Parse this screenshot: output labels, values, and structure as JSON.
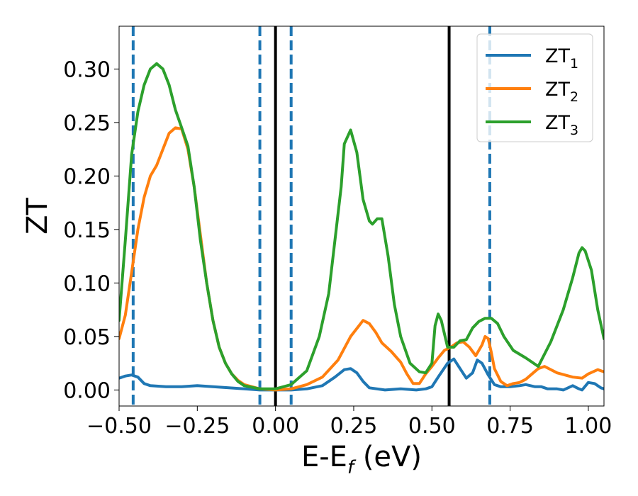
{
  "chart_data": {
    "type": "line",
    "title": "",
    "xlabel": "E-E",
    "xlabel_sub": "f",
    "xlabel_unit": " (eV)",
    "ylabel": "ZT",
    "xlim": [
      -0.5,
      1.05
    ],
    "ylim": [
      -0.015,
      0.34
    ],
    "xticks": [
      -0.5,
      -0.25,
      0.0,
      0.25,
      0.5,
      0.75,
      1.0
    ],
    "xtick_labels": [
      "−0.50",
      "−0.25",
      "0.00",
      "0.25",
      "0.50",
      "0.75",
      "1.00"
    ],
    "yticks": [
      0.0,
      0.05,
      0.1,
      0.15,
      0.2,
      0.25,
      0.3
    ],
    "ytick_labels": [
      "0.00",
      "0.05",
      "0.10",
      "0.15",
      "0.20",
      "0.25",
      "0.30"
    ],
    "grid": false,
    "legend_position": "top-right",
    "vlines_solid": [
      0.0,
      0.555
    ],
    "vlines_dashed": [
      -0.455,
      -0.05,
      0.05,
      0.685
    ],
    "vline_solid_color": "#000000",
    "vline_dashed_color": "#1f77b4",
    "series": [
      {
        "name": "ZT",
        "sub": "1",
        "color": "#1f77b4",
        "points": [
          [
            -0.5,
            0.011
          ],
          [
            -0.48,
            0.013
          ],
          [
            -0.46,
            0.014
          ],
          [
            -0.44,
            0.012
          ],
          [
            -0.42,
            0.006
          ],
          [
            -0.4,
            0.004
          ],
          [
            -0.35,
            0.003
          ],
          [
            -0.3,
            0.003
          ],
          [
            -0.25,
            0.004
          ],
          [
            -0.2,
            0.003
          ],
          [
            -0.15,
            0.002
          ],
          [
            -0.1,
            0.001
          ],
          [
            -0.05,
            0.0
          ],
          [
            0.0,
            0.0
          ],
          [
            0.05,
            0.0
          ],
          [
            0.1,
            0.001
          ],
          [
            0.15,
            0.004
          ],
          [
            0.19,
            0.012
          ],
          [
            0.22,
            0.019
          ],
          [
            0.24,
            0.02
          ],
          [
            0.26,
            0.016
          ],
          [
            0.28,
            0.008
          ],
          [
            0.3,
            0.002
          ],
          [
            0.35,
            0.0
          ],
          [
            0.4,
            0.001
          ],
          [
            0.45,
            0.0
          ],
          [
            0.48,
            0.001
          ],
          [
            0.5,
            0.003
          ],
          [
            0.52,
            0.012
          ],
          [
            0.55,
            0.025
          ],
          [
            0.57,
            0.029
          ],
          [
            0.59,
            0.02
          ],
          [
            0.61,
            0.011
          ],
          [
            0.63,
            0.016
          ],
          [
            0.645,
            0.028
          ],
          [
            0.66,
            0.025
          ],
          [
            0.68,
            0.014
          ],
          [
            0.7,
            0.005
          ],
          [
            0.72,
            0.003
          ],
          [
            0.75,
            0.003
          ],
          [
            0.78,
            0.004
          ],
          [
            0.8,
            0.005
          ],
          [
            0.83,
            0.003
          ],
          [
            0.85,
            0.003
          ],
          [
            0.87,
            0.001
          ],
          [
            0.9,
            0.001
          ],
          [
            0.92,
            0.0
          ],
          [
            0.95,
            0.004
          ],
          [
            0.97,
            0.001
          ],
          [
            0.98,
            0.0
          ],
          [
            1.0,
            0.007
          ],
          [
            1.02,
            0.006
          ],
          [
            1.04,
            0.002
          ],
          [
            1.05,
            0.001
          ]
        ]
      },
      {
        "name": "ZT",
        "sub": "2",
        "color": "#ff7f0e",
        "points": [
          [
            -0.5,
            0.048
          ],
          [
            -0.48,
            0.07
          ],
          [
            -0.46,
            0.11
          ],
          [
            -0.44,
            0.15
          ],
          [
            -0.42,
            0.18
          ],
          [
            -0.4,
            0.2
          ],
          [
            -0.38,
            0.21
          ],
          [
            -0.36,
            0.225
          ],
          [
            -0.34,
            0.24
          ],
          [
            -0.32,
            0.245
          ],
          [
            -0.3,
            0.244
          ],
          [
            -0.28,
            0.225
          ],
          [
            -0.26,
            0.19
          ],
          [
            -0.24,
            0.145
          ],
          [
            -0.22,
            0.1
          ],
          [
            -0.2,
            0.065
          ],
          [
            -0.18,
            0.04
          ],
          [
            -0.16,
            0.025
          ],
          [
            -0.14,
            0.015
          ],
          [
            -0.12,
            0.009
          ],
          [
            -0.1,
            0.005
          ],
          [
            -0.05,
            0.001
          ],
          [
            0.0,
            0.0
          ],
          [
            0.05,
            0.001
          ],
          [
            0.1,
            0.005
          ],
          [
            0.15,
            0.012
          ],
          [
            0.2,
            0.028
          ],
          [
            0.24,
            0.05
          ],
          [
            0.28,
            0.065
          ],
          [
            0.3,
            0.062
          ],
          [
            0.32,
            0.054
          ],
          [
            0.34,
            0.044
          ],
          [
            0.37,
            0.036
          ],
          [
            0.4,
            0.026
          ],
          [
            0.42,
            0.015
          ],
          [
            0.44,
            0.006
          ],
          [
            0.46,
            0.006
          ],
          [
            0.48,
            0.015
          ],
          [
            0.5,
            0.022
          ],
          [
            0.52,
            0.03
          ],
          [
            0.54,
            0.037
          ],
          [
            0.56,
            0.04
          ],
          [
            0.58,
            0.044
          ],
          [
            0.6,
            0.045
          ],
          [
            0.62,
            0.04
          ],
          [
            0.64,
            0.032
          ],
          [
            0.66,
            0.042
          ],
          [
            0.67,
            0.05
          ],
          [
            0.68,
            0.048
          ],
          [
            0.69,
            0.035
          ],
          [
            0.7,
            0.02
          ],
          [
            0.72,
            0.008
          ],
          [
            0.74,
            0.004
          ],
          [
            0.76,
            0.006
          ],
          [
            0.78,
            0.007
          ],
          [
            0.8,
            0.01
          ],
          [
            0.82,
            0.015
          ],
          [
            0.84,
            0.02
          ],
          [
            0.86,
            0.022
          ],
          [
            0.9,
            0.016
          ],
          [
            0.95,
            0.012
          ],
          [
            0.98,
            0.011
          ],
          [
            1.0,
            0.015
          ],
          [
            1.03,
            0.019
          ],
          [
            1.05,
            0.017
          ]
        ]
      },
      {
        "name": "ZT",
        "sub": "3",
        "color": "#2ca02c",
        "points": [
          [
            -0.5,
            0.065
          ],
          [
            -0.48,
            0.14
          ],
          [
            -0.46,
            0.22
          ],
          [
            -0.44,
            0.26
          ],
          [
            -0.42,
            0.285
          ],
          [
            -0.4,
            0.3
          ],
          [
            -0.38,
            0.305
          ],
          [
            -0.36,
            0.3
          ],
          [
            -0.34,
            0.285
          ],
          [
            -0.32,
            0.262
          ],
          [
            -0.3,
            0.245
          ],
          [
            -0.28,
            0.228
          ],
          [
            -0.26,
            0.19
          ],
          [
            -0.24,
            0.14
          ],
          [
            -0.22,
            0.1
          ],
          [
            -0.2,
            0.065
          ],
          [
            -0.18,
            0.04
          ],
          [
            -0.16,
            0.025
          ],
          [
            -0.14,
            0.015
          ],
          [
            -0.12,
            0.008
          ],
          [
            -0.1,
            0.004
          ],
          [
            -0.05,
            0.001
          ],
          [
            0.0,
            0.001
          ],
          [
            0.05,
            0.005
          ],
          [
            0.1,
            0.018
          ],
          [
            0.14,
            0.05
          ],
          [
            0.17,
            0.09
          ],
          [
            0.19,
            0.14
          ],
          [
            0.21,
            0.19
          ],
          [
            0.22,
            0.23
          ],
          [
            0.24,
            0.243
          ],
          [
            0.26,
            0.222
          ],
          [
            0.28,
            0.178
          ],
          [
            0.3,
            0.158
          ],
          [
            0.31,
            0.155
          ],
          [
            0.325,
            0.16
          ],
          [
            0.34,
            0.16
          ],
          [
            0.36,
            0.125
          ],
          [
            0.38,
            0.08
          ],
          [
            0.4,
            0.05
          ],
          [
            0.43,
            0.025
          ],
          [
            0.46,
            0.017
          ],
          [
            0.48,
            0.016
          ],
          [
            0.5,
            0.025
          ],
          [
            0.51,
            0.06
          ],
          [
            0.52,
            0.071
          ],
          [
            0.53,
            0.065
          ],
          [
            0.55,
            0.04
          ],
          [
            0.57,
            0.04
          ],
          [
            0.59,
            0.046
          ],
          [
            0.61,
            0.047
          ],
          [
            0.63,
            0.058
          ],
          [
            0.65,
            0.064
          ],
          [
            0.67,
            0.067
          ],
          [
            0.69,
            0.067
          ],
          [
            0.71,
            0.062
          ],
          [
            0.73,
            0.05
          ],
          [
            0.76,
            0.037
          ],
          [
            0.8,
            0.03
          ],
          [
            0.84,
            0.022
          ],
          [
            0.88,
            0.045
          ],
          [
            0.92,
            0.075
          ],
          [
            0.95,
            0.105
          ],
          [
            0.97,
            0.128
          ],
          [
            0.98,
            0.133
          ],
          [
            0.99,
            0.13
          ],
          [
            1.01,
            0.112
          ],
          [
            1.03,
            0.075
          ],
          [
            1.05,
            0.048
          ]
        ]
      }
    ]
  }
}
